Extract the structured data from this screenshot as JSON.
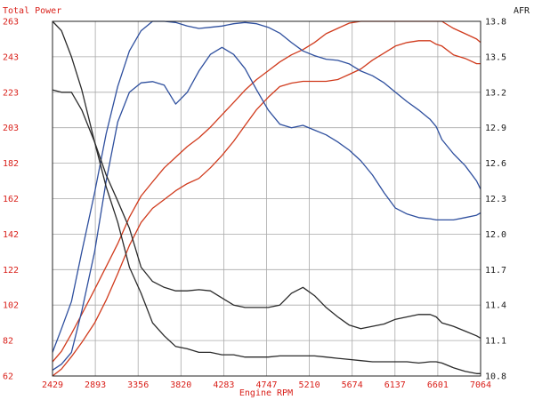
{
  "chart_data": {
    "type": "line",
    "title_left": "Total Power",
    "title_right": "AFR",
    "xlabel": "Engine RPM",
    "xlim": [
      2429,
      7064
    ],
    "x_ticks": [
      "2429",
      "2893",
      "3356",
      "3820",
      "4283",
      "4747",
      "5210",
      "5674",
      "6137",
      "6601",
      "7064"
    ],
    "ylim_left": [
      62,
      263
    ],
    "y_ticks_left": [
      "62",
      "82",
      "102",
      "122",
      "142",
      "162",
      "182",
      "203",
      "223",
      "243",
      "263"
    ],
    "ylim_right": [
      10.8,
      13.8
    ],
    "y_ticks_right": [
      "10.8",
      "11.1",
      "11.4",
      "11.7",
      "12.0",
      "12.3",
      "12.6",
      "12.9",
      "13.2",
      "13.5",
      "13.8"
    ],
    "grid": true,
    "series": [
      {
        "axis": "left",
        "color": "#d03a1c",
        "x": [
          2429,
          2526,
          2634,
          2746,
          2885,
          3010,
          3135,
          3262,
          3388,
          3512,
          3638,
          3763,
          3888,
          4014,
          4138,
          4264,
          4390,
          4513,
          4639,
          4765,
          4890,
          5016,
          5141,
          5266,
          5391,
          5517,
          5643,
          5767,
          5893,
          6019,
          6142,
          6268,
          6394,
          6519,
          6583,
          6645,
          6770,
          6896,
          7021,
          7064
        ],
        "y": [
          70,
          76,
          86,
          97,
          111,
          124,
          137,
          152,
          164,
          172,
          180,
          186,
          192,
          197,
          203,
          210,
          217,
          224,
          230,
          235,
          240,
          244,
          247,
          251,
          256,
          259,
          262,
          263,
          263,
          263,
          263,
          263,
          263,
          263,
          263,
          263,
          259,
          256,
          253,
          251
        ]
      },
      {
        "axis": "left",
        "color": "#d03a1c",
        "x": [
          2429,
          2526,
          2634,
          2746,
          2885,
          3010,
          3135,
          3262,
          3388,
          3512,
          3638,
          3763,
          3888,
          4014,
          4138,
          4264,
          4390,
          4513,
          4639,
          4765,
          4890,
          5016,
          5141,
          5266,
          5391,
          5517,
          5643,
          5767,
          5893,
          6019,
          6142,
          6268,
          6394,
          6519,
          6583,
          6645,
          6770,
          6896,
          7021,
          7064
        ],
        "y": [
          62,
          66,
          73,
          81,
          92,
          105,
          120,
          136,
          149,
          157,
          162,
          167,
          171,
          174,
          180,
          187,
          195,
          204,
          213,
          220,
          226,
          228,
          229,
          229,
          229,
          230,
          233,
          236,
          241,
          245,
          249,
          251,
          252,
          252,
          250,
          249,
          244,
          242,
          239,
          239
        ]
      },
      {
        "axis": "right",
        "color": "#2e4f9e",
        "x": [
          2429,
          2526,
          2634,
          2746,
          2885,
          3010,
          3135,
          3262,
          3388,
          3512,
          3638,
          3763,
          3888,
          4014,
          4138,
          4264,
          4390,
          4513,
          4639,
          4765,
          4890,
          5016,
          5141,
          5266,
          5391,
          5517,
          5643,
          5767,
          5893,
          6019,
          6142,
          6268,
          6394,
          6519,
          6583,
          6645,
          6770,
          6896,
          7021,
          7064
        ],
        "y": [
          11.0,
          11.2,
          11.43,
          11.85,
          12.35,
          12.85,
          13.25,
          13.55,
          13.72,
          13.8,
          13.8,
          13.79,
          13.76,
          13.74,
          13.75,
          13.76,
          13.78,
          13.79,
          13.78,
          13.75,
          13.7,
          13.62,
          13.55,
          13.51,
          13.48,
          13.47,
          13.44,
          13.38,
          13.34,
          13.28,
          13.2,
          13.12,
          13.05,
          12.97,
          12.91,
          12.8,
          12.68,
          12.58,
          12.45,
          12.38
        ]
      },
      {
        "axis": "right",
        "color": "#2e4f9e",
        "x": [
          2429,
          2526,
          2634,
          2746,
          2885,
          3010,
          3135,
          3262,
          3388,
          3512,
          3638,
          3763,
          3888,
          4014,
          4138,
          4264,
          4390,
          4513,
          4639,
          4765,
          4890,
          5016,
          5141,
          5266,
          5391,
          5517,
          5643,
          5767,
          5893,
          6019,
          6142,
          6268,
          6394,
          6519,
          6583,
          6645,
          6770,
          6896,
          7021,
          7064
        ],
        "y": [
          10.85,
          10.9,
          11.0,
          11.35,
          11.85,
          12.45,
          12.95,
          13.2,
          13.28,
          13.29,
          13.26,
          13.1,
          13.2,
          13.38,
          13.52,
          13.58,
          13.52,
          13.4,
          13.22,
          13.05,
          12.93,
          12.9,
          12.92,
          12.88,
          12.84,
          12.78,
          12.71,
          12.62,
          12.5,
          12.35,
          12.22,
          12.17,
          12.14,
          12.13,
          12.12,
          12.12,
          12.12,
          12.14,
          12.16,
          12.18
        ]
      },
      {
        "axis": "right",
        "color": "#2a2a2a",
        "x": [
          2429,
          2526,
          2634,
          2746,
          2885,
          3010,
          3135,
          3262,
          3388,
          3512,
          3638,
          3763,
          3888,
          4014,
          4138,
          4264,
          4390,
          4513,
          4639,
          4765,
          4890,
          5016,
          5141,
          5266,
          5391,
          5517,
          5643,
          5767,
          5893,
          6019,
          6142,
          6268,
          6394,
          6519,
          6583,
          6645,
          6770,
          6896,
          7021,
          7064
        ],
        "y": [
          13.22,
          13.2,
          13.2,
          13.05,
          12.78,
          12.5,
          12.28,
          12.05,
          11.72,
          11.6,
          11.55,
          11.52,
          11.52,
          11.53,
          11.52,
          11.46,
          11.4,
          11.38,
          11.38,
          11.38,
          11.4,
          11.5,
          11.55,
          11.48,
          11.38,
          11.3,
          11.23,
          11.2,
          11.22,
          11.24,
          11.28,
          11.3,
          11.32,
          11.32,
          11.3,
          11.25,
          11.22,
          11.18,
          11.14,
          11.12
        ]
      },
      {
        "axis": "right",
        "color": "#2a2a2a",
        "x": [
          2429,
          2526,
          2634,
          2746,
          2885,
          3010,
          3135,
          3262,
          3388,
          3512,
          3638,
          3763,
          3888,
          4014,
          4138,
          4264,
          4390,
          4513,
          4639,
          4765,
          4890,
          5016,
          5141,
          5266,
          5391,
          5517,
          5643,
          5767,
          5893,
          6019,
          6142,
          6268,
          6394,
          6519,
          6583,
          6645,
          6770,
          6896,
          7021,
          7064
        ],
        "y": [
          13.8,
          13.72,
          13.5,
          13.22,
          12.78,
          12.4,
          12.1,
          11.72,
          11.5,
          11.25,
          11.14,
          11.05,
          11.03,
          11.0,
          11.0,
          10.98,
          10.98,
          10.96,
          10.96,
          10.96,
          10.97,
          10.97,
          10.97,
          10.97,
          10.96,
          10.95,
          10.94,
          10.93,
          10.92,
          10.92,
          10.92,
          10.92,
          10.91,
          10.92,
          10.92,
          10.91,
          10.87,
          10.84,
          10.82,
          10.82
        ]
      }
    ]
  }
}
